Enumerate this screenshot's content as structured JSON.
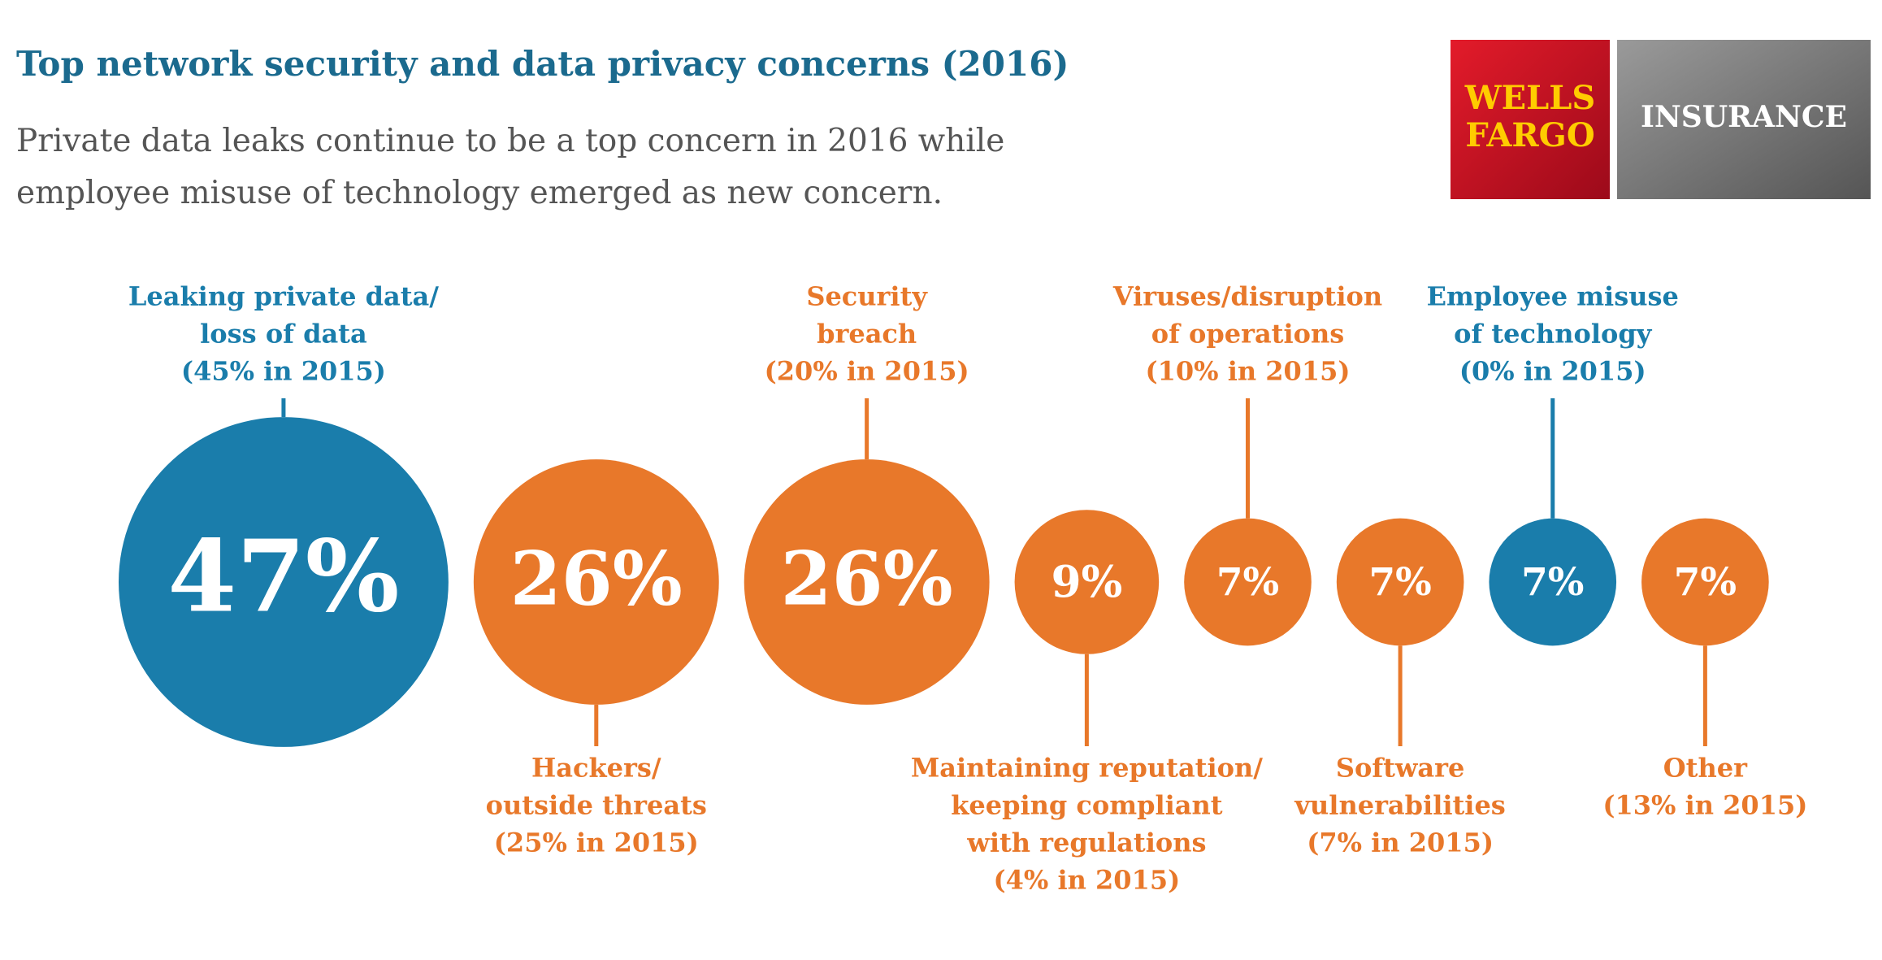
{
  "chart_data": {
    "type": "bubble",
    "title": "Top network security and data privacy concerns (2016)",
    "subtitle": [
      "Private data leaks continue to be a top concern in 2016 while",
      "employee misuse of technology emerged as new concern."
    ],
    "logo": {
      "brand": [
        "WELLS",
        "FARGO"
      ],
      "product": "INSURANCE"
    },
    "categories": [
      [
        "Leaking private data/",
        "loss of data"
      ],
      [
        "Hackers/",
        "outside threats"
      ],
      [
        "Security",
        "breach"
      ],
      [
        "Maintaining reputation/",
        "keeping compliant",
        "with regulations"
      ],
      [
        "Viruses/disruption",
        "of operations"
      ],
      [
        "Software",
        "vulnerabilities"
      ],
      [
        "Employee misuse",
        "of technology"
      ],
      [
        "Other"
      ]
    ],
    "notes": [
      "(45% in 2015)",
      "(25% in 2015)",
      "(20% in 2015)",
      "(4% in 2015)",
      "(10% in 2015)",
      "(7% in 2015)",
      "(0% in 2015)",
      "(13% in 2015)"
    ],
    "values": [
      47,
      26,
      26,
      9,
      7,
      7,
      7,
      7
    ],
    "value_labels": [
      "47%",
      "26%",
      "26%",
      "9%",
      "7%",
      "7%",
      "7%",
      "7%"
    ],
    "colors": [
      "#1a7dab",
      "#e8782a",
      "#e8782a",
      "#e8782a",
      "#e8782a",
      "#e8782a",
      "#1a7dab",
      "#e8782a"
    ]
  }
}
